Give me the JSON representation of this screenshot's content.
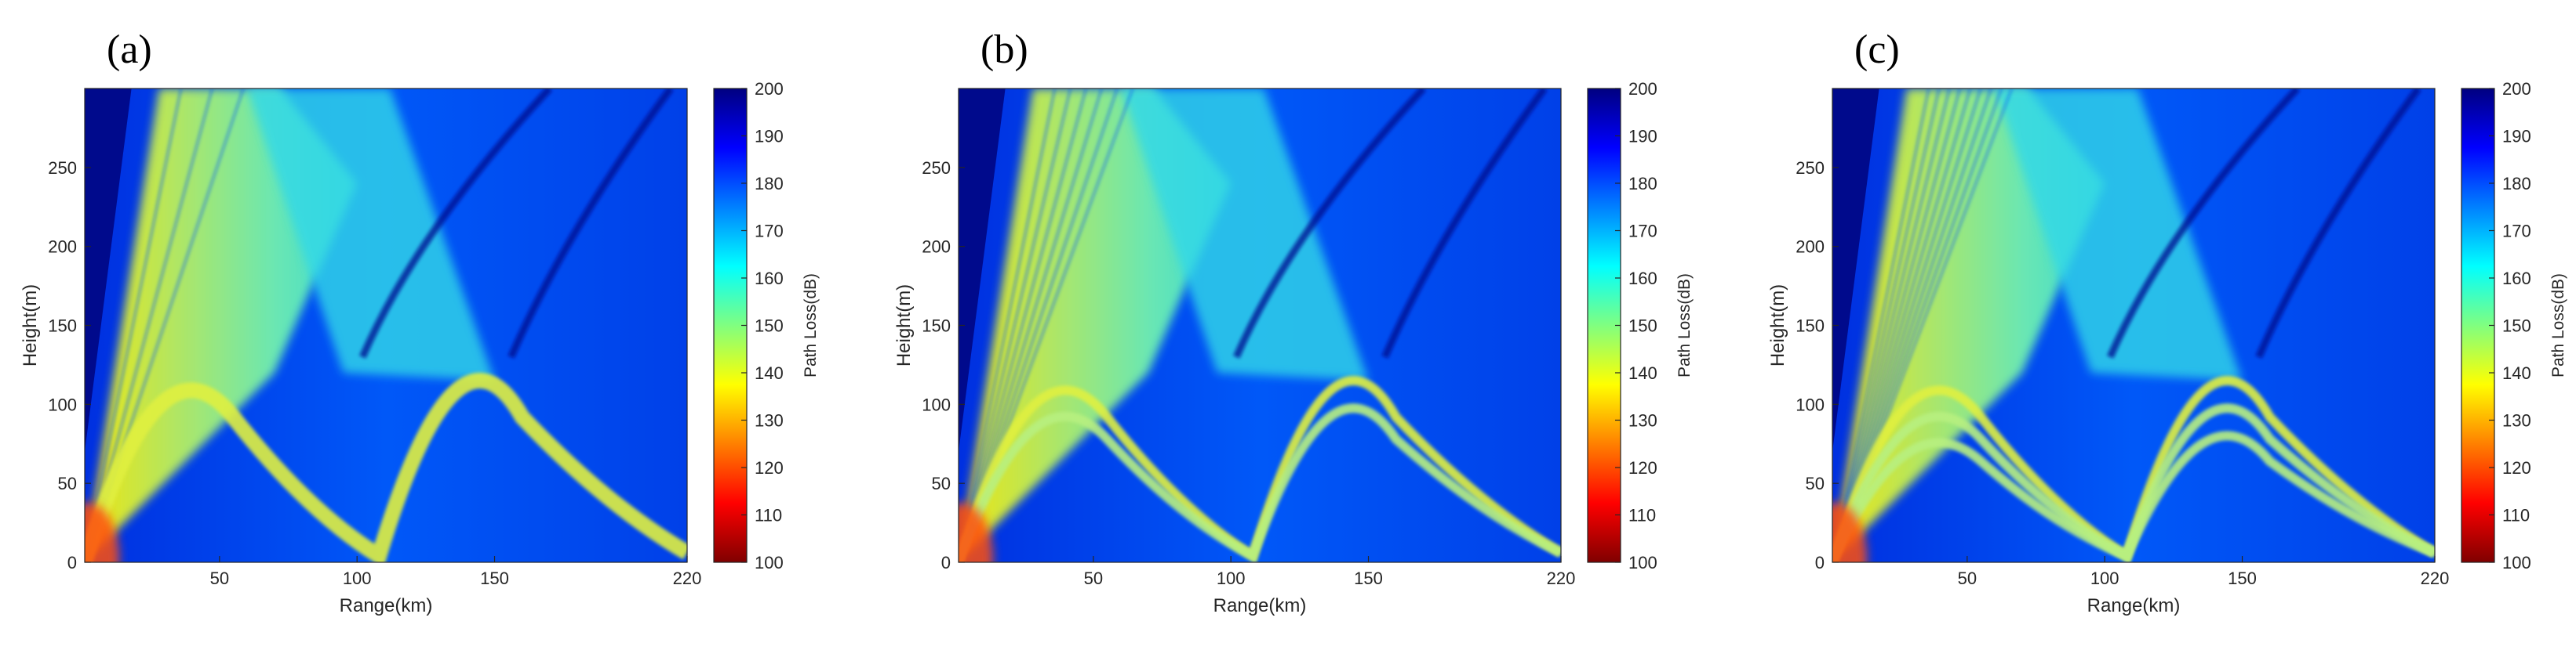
{
  "figure": {
    "panels": [
      {
        "label": "(a)",
        "rings": 1
      },
      {
        "label": "(b)",
        "rings": 2
      },
      {
        "label": "(c)",
        "rings": 3
      }
    ]
  },
  "chart_data": [
    {
      "type": "heatmap",
      "panel_label": "(a)",
      "title": "",
      "xlabel": "Range(km)",
      "ylabel": "Height(m)",
      "xlim": [
        1,
        220
      ],
      "ylim": [
        0,
        300
      ],
      "x_ticks": [
        50,
        100,
        150,
        220
      ],
      "y_ticks": [
        0,
        50,
        100,
        150,
        200,
        250
      ],
      "colorbar": {
        "label": "Path Loss(dB)",
        "range": [
          100,
          200
        ],
        "ticks": [
          100,
          110,
          120,
          130,
          140,
          150,
          160,
          170,
          180,
          190,
          200
        ],
        "colormap": "jet"
      },
      "grid": false
    },
    {
      "type": "heatmap",
      "panel_label": "(b)",
      "title": "",
      "xlabel": "Range(km)",
      "ylabel": "Height(m)",
      "xlim": [
        1,
        220
      ],
      "ylim": [
        0,
        300
      ],
      "x_ticks": [
        50,
        100,
        150,
        220
      ],
      "y_ticks": [
        0,
        50,
        100,
        150,
        200,
        250
      ],
      "colorbar": {
        "label": "Path Loss(dB)",
        "range": [
          100,
          200
        ],
        "ticks": [
          100,
          110,
          120,
          130,
          140,
          150,
          160,
          170,
          180,
          190,
          200
        ],
        "colormap": "jet"
      },
      "grid": false
    },
    {
      "type": "heatmap",
      "panel_label": "(c)",
      "title": "",
      "xlabel": "Range(km)",
      "ylabel": "Height(m)",
      "xlim": [
        1,
        220
      ],
      "ylim": [
        0,
        300
      ],
      "x_ticks": [
        50,
        100,
        150,
        220
      ],
      "y_ticks": [
        0,
        50,
        100,
        150,
        200,
        250
      ],
      "colorbar": {
        "label": "Path Loss(dB)",
        "range": [
          100,
          200
        ],
        "ticks": [
          100,
          110,
          120,
          130,
          140,
          150,
          160,
          170,
          180,
          190,
          200
        ],
        "colormap": "jet"
      },
      "grid": false
    }
  ],
  "colors": {
    "jet": [
      "#800000",
      "#ff0000",
      "#ff8000",
      "#ffff00",
      "#80ff80",
      "#00ffff",
      "#0080ff",
      "#0000ff",
      "#000080"
    ],
    "axis": "#262626"
  }
}
